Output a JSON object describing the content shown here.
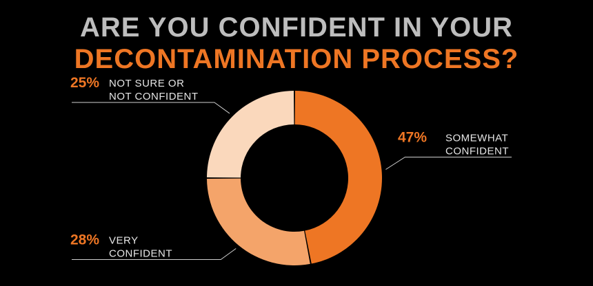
{
  "title": {
    "line1": "ARE YOU CONFIDENT IN YOUR",
    "line2": "DECONTAMINATION PROCESS?"
  },
  "colors": {
    "background": "#000000",
    "title_line1": "#bdbdbd",
    "accent": "#ee7624"
  },
  "chart_data": {
    "type": "pie",
    "variant": "donut",
    "title": "ARE YOU CONFIDENT IN YOUR DECONTAMINATION PROCESS?",
    "slices": [
      {
        "label_lines": [
          "SOMEWHAT",
          "CONFIDENT"
        ],
        "value": 47,
        "display": "47%",
        "color": "#ee7624"
      },
      {
        "label_lines": [
          "VERY",
          "CONFIDENT"
        ],
        "value": 28,
        "display": "28%",
        "color": "#f4a46a"
      },
      {
        "label_lines": [
          "NOT SURE OR",
          "NOT CONFIDENT"
        ],
        "value": 25,
        "display": "25%",
        "color": "#fad8bc"
      }
    ]
  }
}
